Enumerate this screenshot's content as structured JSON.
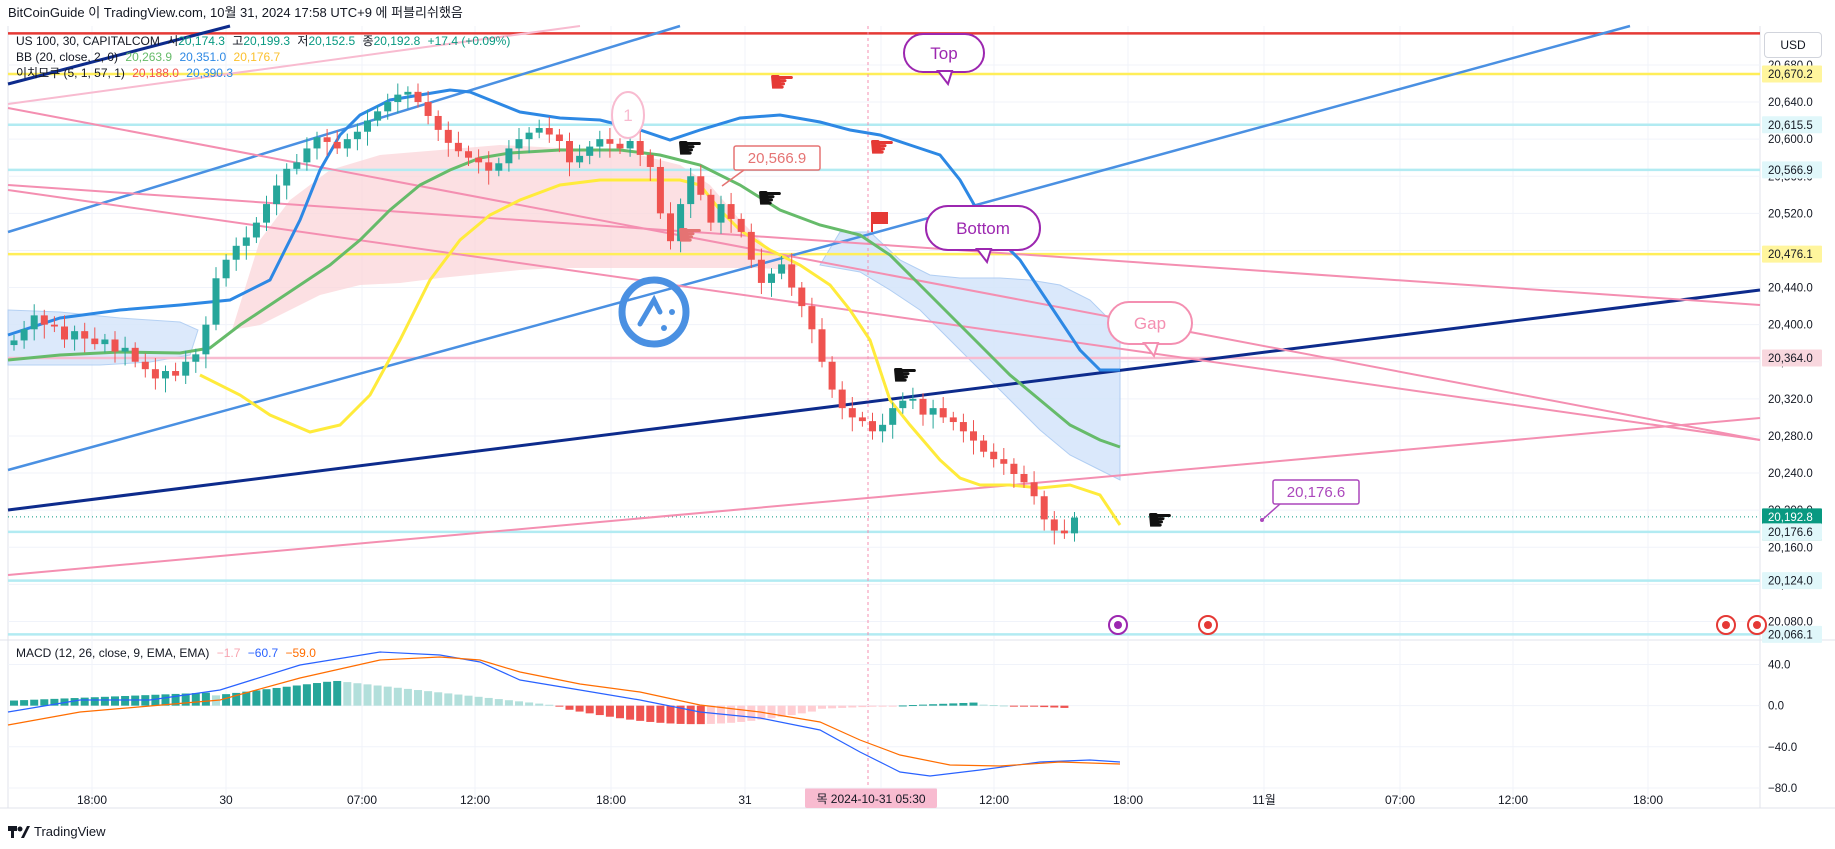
{
  "header": {
    "title": "BitCoinGuide 이 TradingView.com, 10월 31, 2024 17:58 UTC+9 에 퍼블리쉬했음"
  },
  "legend": {
    "symbol": "US 100, 30, CAPITALCOM",
    "ohlc": [
      {
        "label": "시",
        "value": "20,174.3"
      },
      {
        "label": "고",
        "value": "20,199.3"
      },
      {
        "label": "저",
        "value": "20,152.5"
      },
      {
        "label": "종",
        "value": "20,192.8"
      }
    ],
    "change": "+17.4 (+0.09%)",
    "bb": {
      "label": "BB (20, close, 2, 0)",
      "basis": "20,263.9",
      "upper": "20,351.0",
      "lower": "20,176.7"
    },
    "ichimoku": {
      "label": "이치모쿠 (5, 1, 57, 1)",
      "v1": "20,188.0",
      "v2": "20,390.3"
    },
    "macd": {
      "label": "MACD (12, 26, close, 9, EMA, EMA)",
      "hist": "−1.7",
      "macd": "−60.7",
      "signal": "−59.0"
    }
  },
  "currency": "USD",
  "footer": {
    "brand": "TradingView"
  },
  "colors": {
    "bull": "#26a69a",
    "bear": "#ef5350",
    "bb_upper": "#2d88e4",
    "bb_basis": "#66bb6a",
    "tenkan": "#ffeb3b",
    "channel_blue": "#4a90e2",
    "navy": "#0d2b8c",
    "pink": "#f48fb1",
    "red_line": "#e53935",
    "yellow_line": "#ffee58",
    "cyan_line": "#b2ebf2"
  },
  "annotations": {
    "top": "Top",
    "bottom": "Bottom",
    "gap": "Gap",
    "one": "1",
    "price_callout": "20,566.9",
    "price_callout2": "20,176.6"
  },
  "chart_data": {
    "type": "candlestick",
    "price_axis": {
      "ticks": [
        "20,680.0",
        "20,640.0",
        "20,600.0",
        "20,560.0",
        "20,520.0",
        "20,480.0",
        "20,440.0",
        "20,400.0",
        "20,360.0",
        "20,320.0",
        "20,280.0",
        "20,240.0",
        "20,200.0",
        "20,160.0",
        "20,120.0",
        "20,080.0"
      ],
      "range": [
        20060,
        20722
      ]
    },
    "price_labels": [
      {
        "value": "20,670.2",
        "price": 20670.2,
        "bg": "#fff59d",
        "fg": "#131722"
      },
      {
        "value": "20,615.5",
        "price": 20615.5,
        "bg": "#e0f7fa",
        "fg": "#131722"
      },
      {
        "value": "20,566.9",
        "price": 20566.9,
        "bg": "#e0f7fa",
        "fg": "#131722"
      },
      {
        "value": "20,476.1",
        "price": 20476.1,
        "bg": "#fff59d",
        "fg": "#131722"
      },
      {
        "value": "20,364.0",
        "price": 20364.0,
        "bg": "#f8d7de",
        "fg": "#131722"
      },
      {
        "value": "20,192.8",
        "price": 20192.8,
        "bg": "#089981",
        "fg": "#ffffff",
        "timer": "01:37"
      },
      {
        "value": "20,176.6",
        "price": 20176.6,
        "bg": "#e0f7fa",
        "fg": "#131722"
      },
      {
        "value": "20,124.0",
        "price": 20124.0,
        "bg": "#e0f7fa",
        "fg": "#131722"
      },
      {
        "value": "20,066.1",
        "price": 20066.1,
        "bg": "#e0f7fa",
        "fg": "#131722"
      }
    ],
    "time_axis": [
      "18:00",
      "30",
      "07:00",
      "12:00",
      "18:00",
      "31",
      "07:00",
      "12:00",
      "18:00",
      "11월",
      "07:00",
      "12:00",
      "18:00"
    ],
    "crosshair_time": "목 2024-10-31  05:30",
    "macd_axis": {
      "ticks": [
        "40.0",
        "0.0",
        "−40.0",
        "−80.0"
      ],
      "range": [
        -82,
        58
      ]
    }
  }
}
